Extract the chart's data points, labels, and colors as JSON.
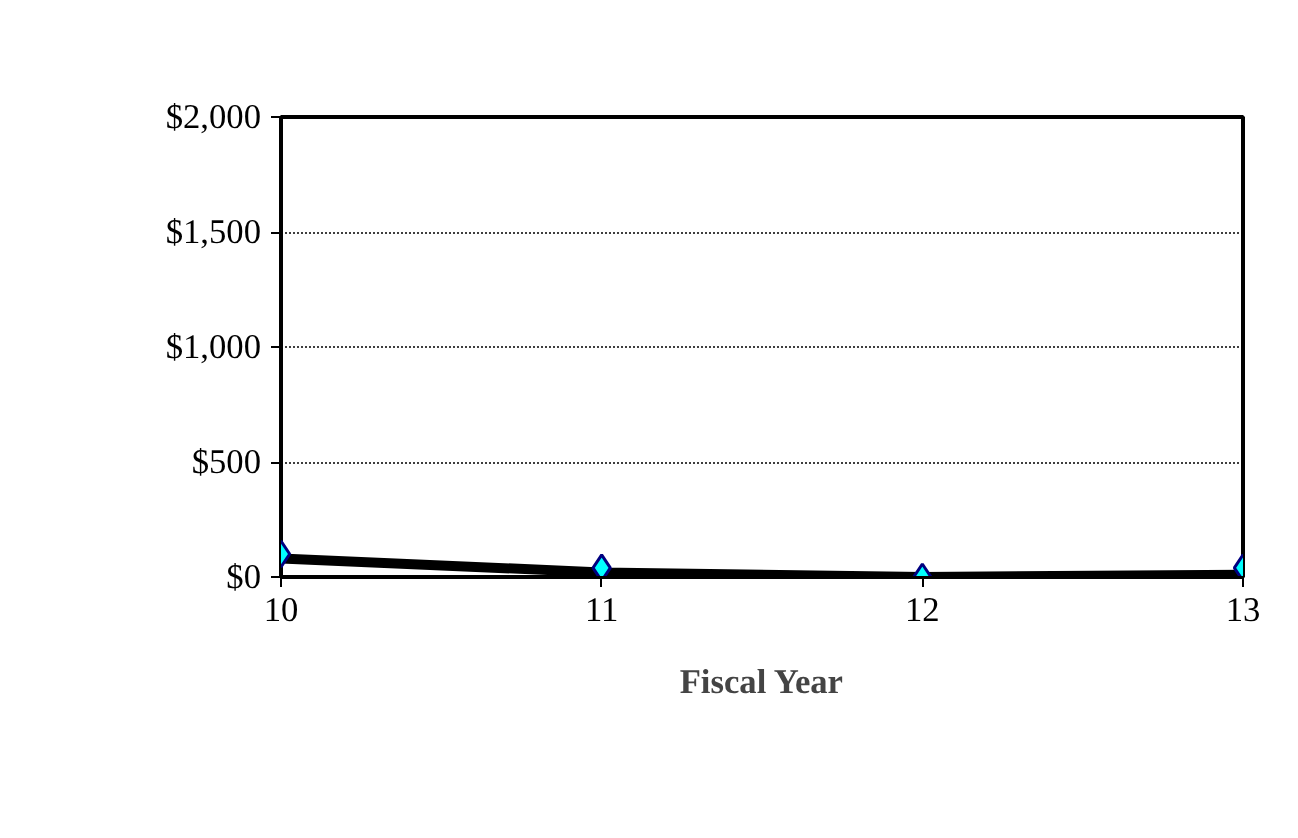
{
  "chart_data": {
    "type": "line",
    "xlabel": "Fiscal Year",
    "x": [
      10,
      11,
      12,
      13
    ],
    "xlim": [
      10,
      13
    ],
    "xticks": [
      10,
      11,
      12,
      13
    ],
    "ylim": [
      0,
      2000
    ],
    "yticks": [
      {
        "value": 0,
        "label": "$0"
      },
      {
        "value": 500,
        "label": "$500"
      },
      {
        "value": 1000,
        "label": "$1,000"
      },
      {
        "value": 1500,
        "label": "$1,500"
      },
      {
        "value": 2000,
        "label": "$2,000"
      }
    ],
    "grid": "y",
    "series": [
      {
        "color": "#000000",
        "values": [
          80,
          20,
          0,
          10
        ],
        "marker": "none"
      },
      {
        "color": "#00ffff",
        "values": [
          100,
          40,
          0,
          40
        ],
        "marker": "diamond",
        "type": "scatter"
      }
    ]
  }
}
